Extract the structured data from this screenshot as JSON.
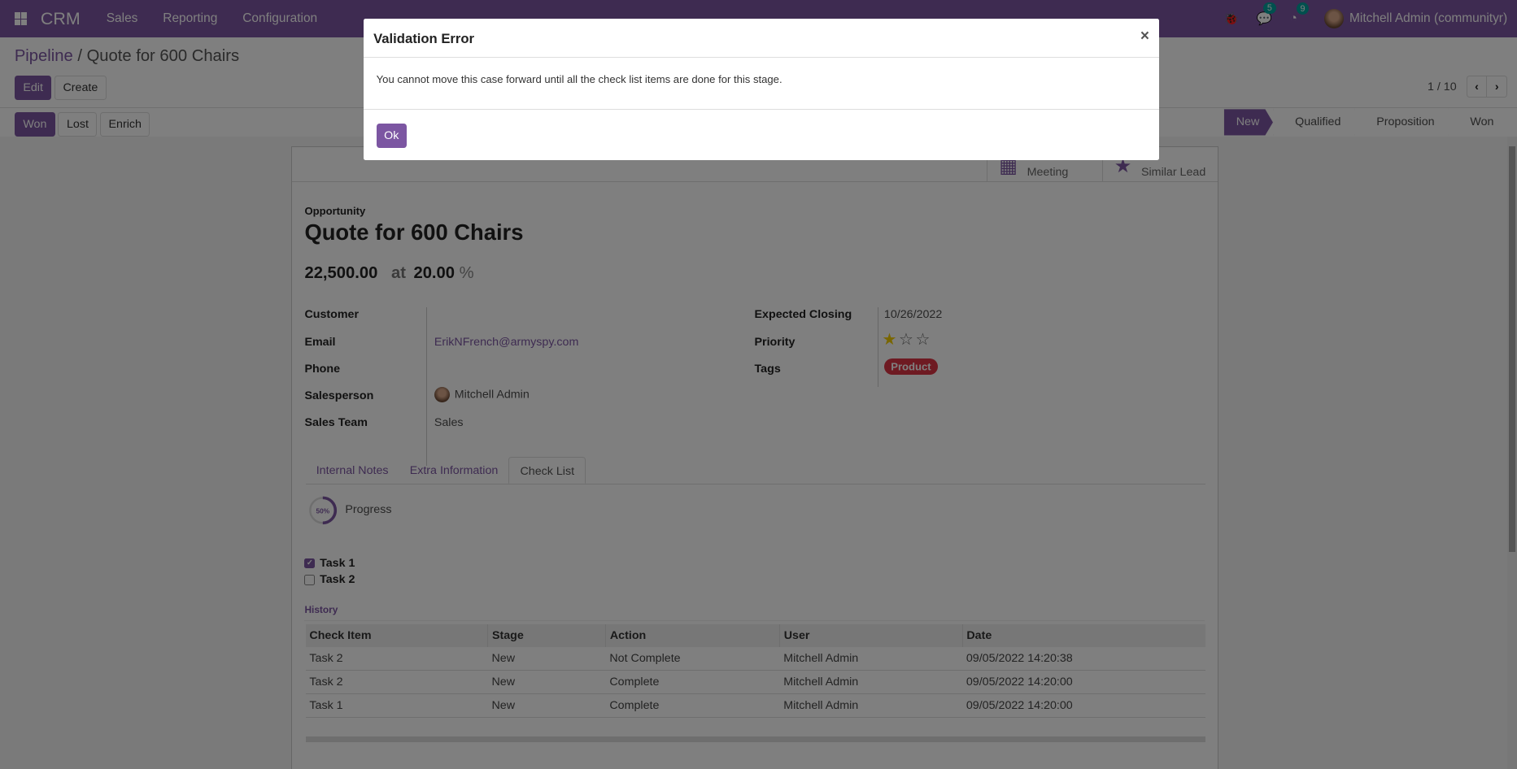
{
  "nav": {
    "brand": "CRM",
    "menus": [
      "Sales",
      "Reporting",
      "Configuration"
    ],
    "messages_count": "5",
    "activities_count": "9",
    "user": "Mitchell Admin (communityr)"
  },
  "breadcrumb": {
    "parent": "Pipeline",
    "current": "Quote for 600 Chairs"
  },
  "toolbar": {
    "edit": "Edit",
    "create": "Create",
    "pager": "1 / 10"
  },
  "actions": {
    "won": "Won",
    "lost": "Lost",
    "enrich": "Enrich"
  },
  "stages": {
    "items": [
      "New",
      "Qualified",
      "Proposition",
      "Won"
    ],
    "active": "New"
  },
  "smart_buttons": {
    "meeting": "Meeting",
    "similar": "Similar Lead"
  },
  "form": {
    "type_label": "Opportunity",
    "name": "Quote for 600 Chairs",
    "revenue": "22,500.00",
    "at": "at",
    "probability": "20.00",
    "percent": "%",
    "left": [
      {
        "label": "Customer",
        "value": ""
      },
      {
        "label": "Email",
        "value": "ErikNFrench@armyspy.com"
      },
      {
        "label": "Phone",
        "value": ""
      },
      {
        "label": "Salesperson",
        "value": "Mitchell Admin"
      },
      {
        "label": "Sales Team",
        "value": "Sales"
      }
    ],
    "right": {
      "closing_label": "Expected Closing",
      "closing": "10/26/2022",
      "priority_label": "Priority",
      "priority": 1,
      "priority_max": 3,
      "tags_label": "Tags",
      "tag": "Product"
    }
  },
  "tabs": [
    "Internal Notes",
    "Extra Information",
    "Check List"
  ],
  "checklist": {
    "progress": "50%",
    "progress_label": "Progress",
    "tasks": [
      {
        "name": "Task 1",
        "done": true
      },
      {
        "name": "Task 2",
        "done": false
      }
    ],
    "history_label": "History",
    "columns": [
      "Check Item",
      "Stage",
      "Action",
      "User",
      "Date"
    ],
    "rows": [
      [
        "Task 2",
        "New",
        "Not Complete",
        "Mitchell Admin",
        "09/05/2022 14:20:38"
      ],
      [
        "Task 2",
        "New",
        "Complete",
        "Mitchell Admin",
        "09/05/2022 14:20:00"
      ],
      [
        "Task 1",
        "New",
        "Complete",
        "Mitchell Admin",
        "09/05/2022 14:20:00"
      ]
    ]
  },
  "dialog": {
    "title": "Validation Error",
    "close": "×",
    "message": "You cannot move this case forward until all the check list items are done for this stage.",
    "ok": "Ok"
  },
  "colors": {
    "brand": "#7c56a2",
    "tag": "#dc3545",
    "star": "#f3cc00"
  }
}
